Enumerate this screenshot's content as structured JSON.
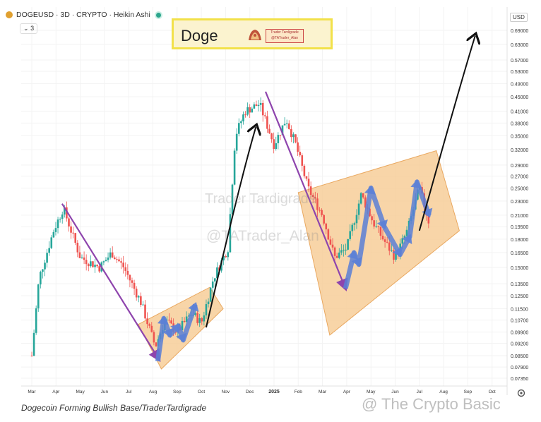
{
  "header": {
    "title": "DOGEUSD · 3D · CRYPTO · Heikin Ashi",
    "indicator_count": "3",
    "currency": "USD"
  },
  "title_box": {
    "text": "Doge",
    "logo_line1": "Trader Tardigrade",
    "logo_line2": "@TATrader_Alan"
  },
  "watermarks": {
    "main": "Trader Tardigrade",
    "handle": "@TATrader_Alan",
    "source": "@ The Crypto Basic"
  },
  "caption": "Dogecoin Forming Bullish Base/TraderTardigrade",
  "colors": {
    "up": "#26a69a",
    "down": "#ef5350",
    "zone_fill": "#f6c98f",
    "zone_stroke": "#e9a860",
    "purple": "#8e44ad",
    "blue_arrow": "#5b7fd6"
  },
  "chart_data": {
    "type": "candlestick",
    "scale": "log",
    "y_ticks": [
      "0.69000",
      "0.63000",
      "0.57000",
      "0.53000",
      "0.49000",
      "0.45000",
      "0.41000",
      "0.38000",
      "0.35000",
      "0.32000",
      "0.29000",
      "0.27000",
      "0.25000",
      "0.23000",
      "0.21000",
      "0.19500",
      "0.18000",
      "0.16500",
      "0.15000",
      "0.13500",
      "0.12500",
      "0.11500",
      "0.10700",
      "0.09900",
      "0.09200",
      "0.08500",
      "0.07900",
      "0.07350"
    ],
    "x_ticks": [
      "Mar",
      "Apr",
      "May",
      "Jun",
      "Jul",
      "Aug",
      "Sep",
      "Oct",
      "Nov",
      "Dec",
      "2025",
      "Feb",
      "Mar",
      "Apr",
      "May",
      "Jun",
      "Jul",
      "Aug",
      "Sep",
      "Oct"
    ],
    "x_bold": [
      "2025"
    ],
    "price_path": [
      {
        "t": 0,
        "p": 0.085
      },
      {
        "t": 0.3,
        "p": 0.14
      },
      {
        "t": 0.9,
        "p": 0.19
      },
      {
        "t": 1.3,
        "p": 0.22
      },
      {
        "t": 2.0,
        "p": 0.16
      },
      {
        "t": 2.8,
        "p": 0.15
      },
      {
        "t": 3.3,
        "p": 0.165
      },
      {
        "t": 3.8,
        "p": 0.15
      },
      {
        "t": 4.5,
        "p": 0.12
      },
      {
        "t": 5.1,
        "p": 0.09
      },
      {
        "t": 5.5,
        "p": 0.107
      },
      {
        "t": 6.0,
        "p": 0.099
      },
      {
        "t": 6.6,
        "p": 0.112
      },
      {
        "t": 7.0,
        "p": 0.105
      },
      {
        "t": 7.5,
        "p": 0.14
      },
      {
        "t": 8.1,
        "p": 0.17
      },
      {
        "t": 8.4,
        "p": 0.35
      },
      {
        "t": 8.8,
        "p": 0.41
      },
      {
        "t": 9.4,
        "p": 0.43
      },
      {
        "t": 10.0,
        "p": 0.33
      },
      {
        "t": 10.5,
        "p": 0.39
      },
      {
        "t": 10.9,
        "p": 0.33
      },
      {
        "t": 11.4,
        "p": 0.25
      },
      {
        "t": 12.0,
        "p": 0.21
      },
      {
        "t": 12.5,
        "p": 0.16
      },
      {
        "t": 13.0,
        "p": 0.17
      },
      {
        "t": 13.6,
        "p": 0.24
      },
      {
        "t": 14.1,
        "p": 0.2
      },
      {
        "t": 14.5,
        "p": 0.18
      },
      {
        "t": 15.0,
        "p": 0.16
      },
      {
        "t": 15.5,
        "p": 0.19
      },
      {
        "t": 16.0,
        "p": 0.25
      },
      {
        "t": 16.4,
        "p": 0.2
      }
    ],
    "zones": [
      {
        "name": "base-1",
        "points": [
          [
            4.4,
            0.104
          ],
          [
            7.35,
            0.132
          ],
          [
            7.9,
            0.115
          ],
          [
            5.35,
            0.078
          ]
        ]
      },
      {
        "name": "base-2",
        "points": [
          [
            11.0,
            0.243
          ],
          [
            16.7,
            0.318
          ],
          [
            17.65,
            0.19
          ],
          [
            12.3,
            0.097
          ]
        ]
      }
    ],
    "purple_arrows": [
      {
        "from": [
          1.25,
          0.226
        ],
        "to": [
          5.25,
          0.083
        ]
      },
      {
        "from": [
          9.65,
          0.465
        ],
        "to": [
          12.95,
          0.131
        ]
      }
    ],
    "blue_arrows": [
      {
        "pts": [
          [
            5.2,
            0.082
          ],
          [
            5.45,
            0.108
          ],
          [
            5.7,
            0.097
          ],
          [
            6.05,
            0.103
          ],
          [
            6.25,
            0.094
          ],
          [
            6.75,
            0.118
          ]
        ]
      },
      {
        "pts": [
          [
            12.95,
            0.131
          ],
          [
            13.3,
            0.165
          ],
          [
            13.5,
            0.153
          ],
          [
            14.0,
            0.25
          ],
          [
            14.55,
            0.195
          ],
          [
            15.2,
            0.163
          ],
          [
            15.6,
            0.183
          ],
          [
            15.9,
            0.26
          ],
          [
            16.4,
            0.21
          ]
        ]
      }
    ],
    "black_arrows": [
      {
        "from": [
          7.2,
          0.102
        ],
        "to": [
          9.25,
          0.37
        ],
        "bend": -0.5
      },
      {
        "from": [
          16.0,
          0.19
        ],
        "to": [
          18.3,
          0.665
        ],
        "bend": -0.45
      }
    ]
  }
}
